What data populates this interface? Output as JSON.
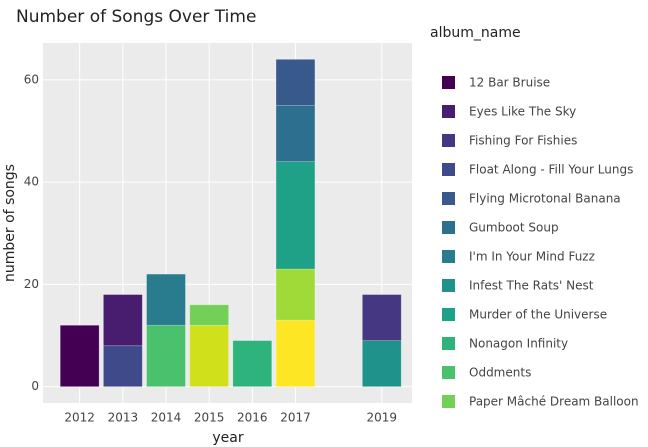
{
  "chart_data": {
    "type": "bar",
    "stacked": true,
    "title": "Number of Songs Over Time",
    "x_label": "year",
    "y_label": "number of songs",
    "legend_title": "album_name",
    "x": [
      2012,
      2013,
      2014,
      2015,
      2016,
      2017,
      2019
    ],
    "xlim": [
      2011.15,
      2019.7
    ],
    "xticks": [
      2012,
      2013,
      2014,
      2015,
      2016,
      2017,
      2019
    ],
    "ylim": [
      -3.2,
      67.2
    ],
    "yticks": [
      0,
      20,
      40,
      60
    ],
    "grid": true,
    "series": [
      {
        "name": "12 Bar Bruise",
        "color": "#440154",
        "values": [
          12,
          null,
          null,
          null,
          null,
          null,
          null
        ]
      },
      {
        "name": "Eyes Like The Sky",
        "color": "#481c6e",
        "values": [
          null,
          10,
          null,
          null,
          null,
          null,
          null
        ]
      },
      {
        "name": "Fishing For Fishies",
        "color": "#453781",
        "values": [
          null,
          null,
          null,
          null,
          null,
          null,
          9
        ]
      },
      {
        "name": "Float Along - Fill Your Lungs",
        "color": "#3f4a8a",
        "values": [
          null,
          8,
          null,
          null,
          null,
          null,
          null
        ]
      },
      {
        "name": "Flying Microtonal Banana",
        "color": "#38598c",
        "values": [
          null,
          null,
          null,
          null,
          null,
          9,
          null
        ]
      },
      {
        "name": "Gumboot Soup",
        "color": "#2d6f8e",
        "values": [
          null,
          null,
          null,
          null,
          null,
          11,
          null
        ]
      },
      {
        "name": "I'm In Your Mind Fuzz",
        "color": "#297b8e",
        "values": [
          null,
          null,
          10,
          null,
          null,
          null,
          null
        ]
      },
      {
        "name": "Infest The Rats' Nest",
        "color": "#20928c",
        "values": [
          null,
          null,
          null,
          null,
          null,
          null,
          9
        ]
      },
      {
        "name": "Murder of the Universe",
        "color": "#1fa187",
        "values": [
          null,
          null,
          null,
          null,
          null,
          21,
          null
        ]
      },
      {
        "name": "Nonagon Infinity",
        "color": "#2eb37c",
        "values": [
          null,
          null,
          null,
          null,
          9,
          null,
          null
        ]
      },
      {
        "name": "Oddments",
        "color": "#4ac16d",
        "values": [
          null,
          null,
          12,
          null,
          null,
          null,
          null
        ]
      },
      {
        "name": "Paper Mâché Dream Balloon",
        "color": "#73d056",
        "values": [
          null,
          null,
          null,
          4,
          null,
          null,
          null
        ]
      },
      {
        "color": "#a0da39",
        "values": [
          null,
          null,
          null,
          null,
          null,
          10,
          null
        ]
      },
      {
        "color": "#d0e11c",
        "values": [
          null,
          null,
          null,
          12,
          null,
          null,
          null
        ]
      },
      {
        "color": "#fde725",
        "values": [
          null,
          null,
          null,
          null,
          null,
          13,
          null
        ]
      }
    ]
  }
}
